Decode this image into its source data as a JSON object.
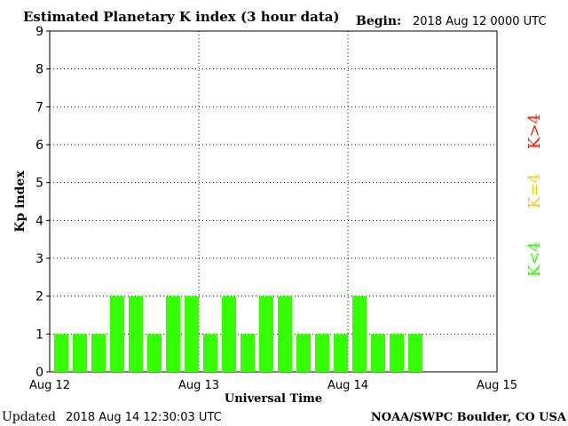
{
  "header": {
    "title": "Estimated Planetary K index (3 hour data)",
    "begin_label": "Begin:",
    "begin_value": "2018 Aug 12 0000 UTC"
  },
  "footer": {
    "updated_label": "Updated",
    "updated_value": "2018 Aug 14 12:30:03 UTC",
    "source": "NOAA/SWPC Boulder, CO USA"
  },
  "legend": {
    "items": [
      {
        "label": "K>4",
        "color": "#ff2200"
      },
      {
        "label": "K=4",
        "color": "#ffcc00"
      },
      {
        "label": "K<4",
        "color": "#33ff00"
      }
    ]
  },
  "chart_data": {
    "type": "bar",
    "title": "Estimated Planetary K index (3 hour data)",
    "xlabel": "Universal Time",
    "ylabel": "Kp index",
    "ylim": [
      0,
      9
    ],
    "yticks": [
      0,
      1,
      2,
      3,
      4,
      5,
      6,
      7,
      8,
      9
    ],
    "xticks": [
      "Aug 12",
      "Aug 13",
      "Aug 14",
      "Aug 15"
    ],
    "grid": true,
    "bar_color": "#33ff00",
    "series": [
      {
        "values": [
          1,
          1,
          1,
          2,
          2,
          1,
          2,
          2,
          1,
          2,
          1,
          2,
          2,
          1,
          1,
          1,
          2,
          1,
          1,
          1
        ]
      }
    ]
  }
}
